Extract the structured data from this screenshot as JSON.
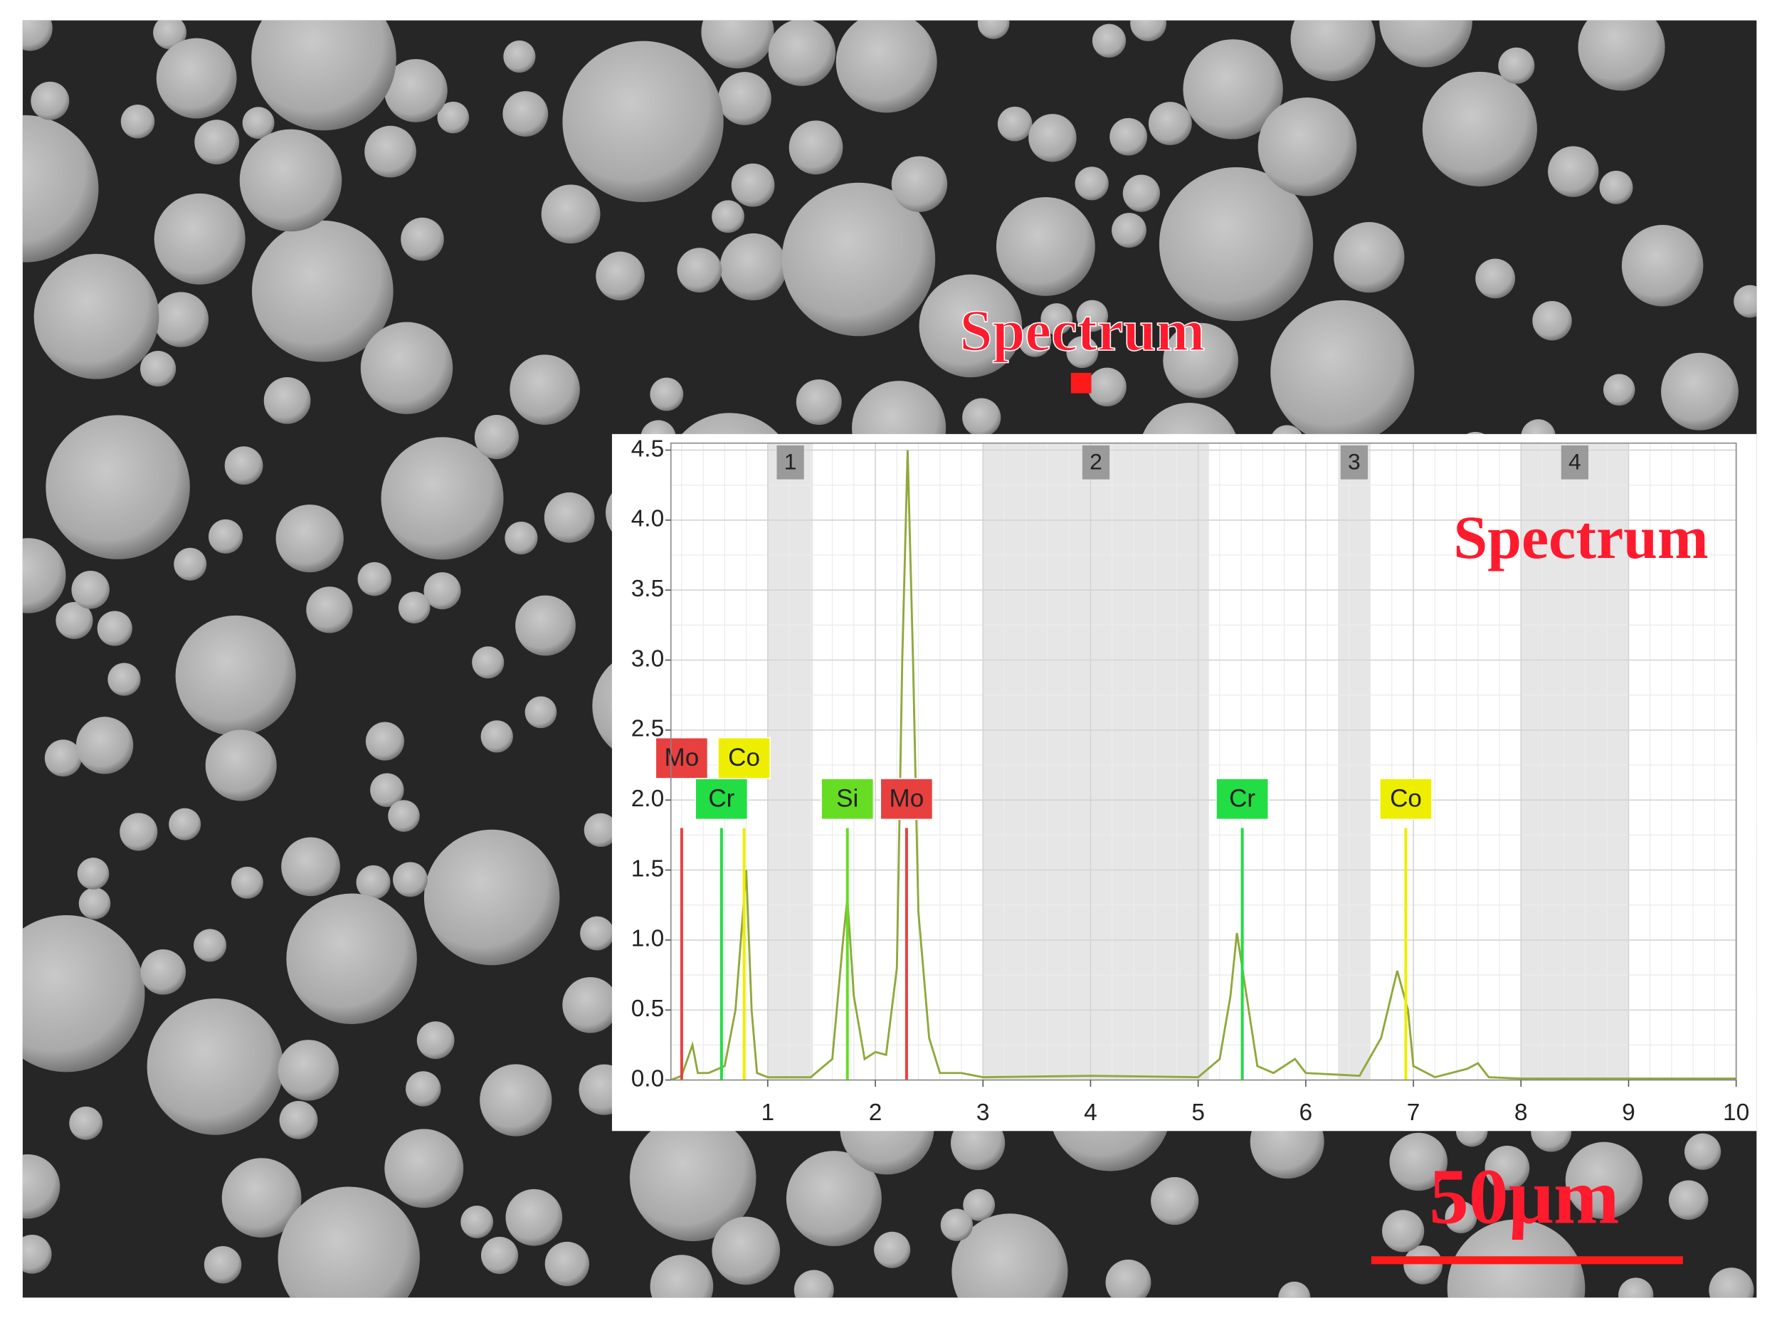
{
  "image": {
    "spectrum_label": "Spectrum",
    "scale_bar_label": "50μm"
  },
  "chart_data": {
    "type": "line",
    "title": "Spectrum",
    "x": [
      0.1,
      0.2,
      0.3,
      0.35,
      0.45,
      0.6,
      0.7,
      0.75,
      0.8,
      0.85,
      0.9,
      1.0,
      1.4,
      1.6,
      1.7,
      1.74,
      1.8,
      1.9,
      2.0,
      2.1,
      2.2,
      2.25,
      2.3,
      2.35,
      2.4,
      2.5,
      2.6,
      2.8,
      3.0,
      4.0,
      5.0,
      5.2,
      5.3,
      5.36,
      5.45,
      5.55,
      5.7,
      5.9,
      6.0,
      6.5,
      6.7,
      6.85,
      6.95,
      7.0,
      7.2,
      7.5,
      7.6,
      7.7,
      8.0,
      10.0
    ],
    "values": [
      0,
      0.03,
      0.25,
      0.05,
      0.05,
      0.1,
      0.5,
      1.0,
      1.5,
      0.5,
      0.05,
      0.02,
      0.02,
      0.15,
      1.0,
      1.3,
      0.6,
      0.15,
      0.2,
      0.18,
      0.8,
      3.0,
      4.5,
      3.0,
      1.2,
      0.3,
      0.05,
      0.05,
      0.02,
      0.03,
      0.02,
      0.15,
      0.6,
      1.05,
      0.6,
      0.1,
      0.05,
      0.15,
      0.05,
      0.03,
      0.3,
      0.78,
      0.5,
      0.1,
      0.02,
      0.08,
      0.12,
      0.02,
      0.01,
      0.01
    ],
    "color": "#8fa83a",
    "xlim": [
      0.1,
      10
    ],
    "xticks": [
      1,
      2,
      3,
      4,
      5,
      6,
      7,
      8,
      9,
      10
    ],
    "ylim": [
      0,
      4.55
    ],
    "yticks": [
      {
        "value": 0,
        "label": "0.0"
      },
      0.5,
      {
        "value": 1,
        "label": "1.0"
      },
      1.5,
      {
        "value": 2,
        "label": "2.0"
      },
      2.5,
      {
        "value": 3,
        "label": "3.0"
      },
      3.5,
      {
        "value": 4,
        "label": "4.0"
      },
      4.5
    ],
    "grid": true,
    "regions": [
      {
        "label": "1",
        "start": 1.0,
        "end": 1.42
      },
      {
        "label": "2",
        "start": 3.0,
        "end": 5.1
      },
      {
        "label": "3",
        "start": 6.3,
        "end": 6.6
      },
      {
        "label": "4",
        "start": 8.0,
        "end": 9.0
      }
    ],
    "markers": [
      {
        "label": "Mo",
        "x": 0.2,
        "height": 1.8,
        "color": "#e8403f"
      },
      {
        "label": "Cr",
        "x": 0.57,
        "height": 1.8,
        "color": "#22dd44"
      },
      {
        "label": "Co",
        "x": 0.78,
        "height": 1.8,
        "color": "#eeee00"
      },
      {
        "label": "Si",
        "x": 1.74,
        "height": 1.8,
        "color": "#66dd22"
      },
      {
        "label": "Mo",
        "x": 2.29,
        "height": 1.8,
        "color": "#e8403f"
      },
      {
        "label": "Cr",
        "x": 5.41,
        "height": 1.8,
        "color": "#22dd44"
      },
      {
        "label": "Co",
        "x": 6.93,
        "height": 1.8,
        "color": "#eeee00"
      }
    ]
  }
}
